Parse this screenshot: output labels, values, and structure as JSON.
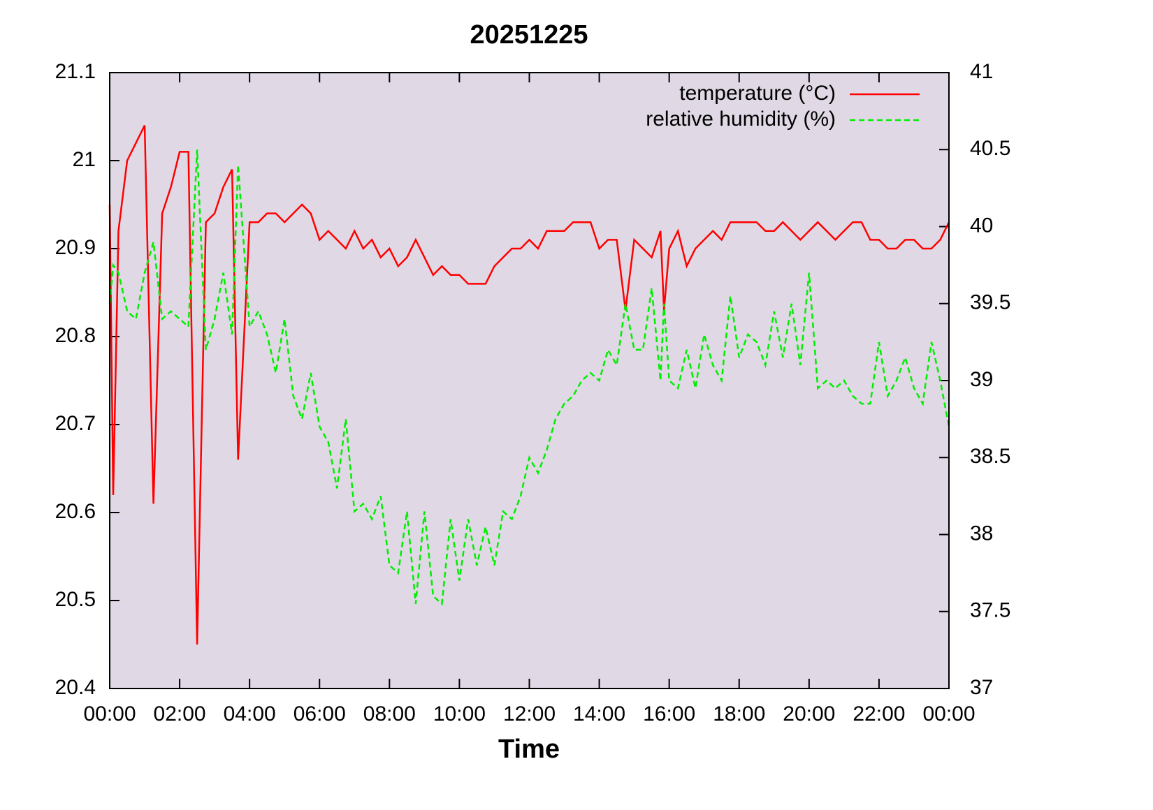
{
  "chart_data": {
    "type": "line",
    "title": "20251225",
    "xlabel": "Time",
    "x": [
      0,
      0.1,
      0.25,
      0.5,
      0.75,
      1,
      1.25,
      1.5,
      1.75,
      2,
      2.25,
      2.5,
      2.75,
      3,
      3.25,
      3.5,
      3.67,
      4,
      4.25,
      4.5,
      4.75,
      5,
      5.25,
      5.5,
      5.75,
      6,
      6.25,
      6.5,
      6.75,
      7,
      7.25,
      7.5,
      7.75,
      8,
      8.25,
      8.5,
      8.75,
      9,
      9.25,
      9.5,
      9.75,
      10,
      10.25,
      10.5,
      10.75,
      11,
      11.25,
      11.5,
      11.75,
      12,
      12.25,
      12.5,
      12.75,
      13,
      13.25,
      13.5,
      13.75,
      14,
      14.25,
      14.5,
      14.75,
      15,
      15.25,
      15.5,
      15.75,
      15.85,
      16,
      16.25,
      16.5,
      16.75,
      17,
      17.25,
      17.5,
      17.75,
      18,
      18.25,
      18.5,
      18.75,
      19,
      19.25,
      19.5,
      19.75,
      20,
      20.25,
      20.5,
      20.75,
      21,
      21.25,
      21.5,
      21.75,
      22,
      22.25,
      22.5,
      22.75,
      23,
      23.25,
      23.5,
      23.75,
      24
    ],
    "series": [
      {
        "name": "temperature (°C)",
        "color": "#ff0000",
        "dashed": false,
        "values": [
          20.95,
          20.62,
          20.92,
          21.0,
          21.02,
          21.04,
          20.61,
          20.94,
          20.97,
          21.01,
          21.01,
          20.45,
          20.93,
          20.94,
          20.97,
          20.99,
          20.66,
          20.93,
          20.93,
          20.94,
          20.94,
          20.93,
          20.94,
          20.95,
          20.94,
          20.91,
          20.92,
          20.91,
          20.9,
          20.92,
          20.9,
          20.91,
          20.89,
          20.9,
          20.88,
          20.89,
          20.91,
          20.89,
          20.87,
          20.88,
          20.87,
          20.87,
          20.86,
          20.86,
          20.86,
          20.88,
          20.89,
          20.9,
          20.9,
          20.91,
          20.9,
          20.92,
          20.92,
          20.92,
          20.93,
          20.93,
          20.93,
          20.9,
          20.91,
          20.91,
          20.83,
          20.91,
          20.9,
          20.89,
          20.92,
          20.83,
          20.9,
          20.92,
          20.88,
          20.9,
          20.91,
          20.92,
          20.91,
          20.93,
          20.93,
          20.93,
          20.93,
          20.92,
          20.92,
          20.93,
          20.92,
          20.91,
          20.92,
          20.93,
          20.92,
          20.91,
          20.92,
          20.93,
          20.93,
          20.91,
          20.91,
          20.9,
          20.9,
          20.91,
          20.91,
          20.9,
          20.9,
          20.91,
          20.93
        ]
      },
      {
        "name": "relative humidity (%)",
        "color": "#00ee00",
        "dashed": true,
        "axis": "y2",
        "values": [
          39.5,
          39.75,
          39.7,
          39.45,
          39.4,
          39.7,
          39.9,
          39.4,
          39.45,
          39.4,
          39.35,
          40.5,
          39.2,
          39.4,
          39.7,
          39.3,
          40.4,
          39.35,
          39.45,
          39.3,
          39.05,
          39.4,
          38.9,
          38.75,
          39.05,
          38.7,
          38.6,
          38.3,
          38.75,
          38.15,
          38.2,
          38.1,
          38.25,
          37.8,
          37.75,
          38.15,
          37.55,
          38.15,
          37.6,
          37.55,
          38.1,
          37.7,
          38.1,
          37.8,
          38.05,
          37.8,
          38.15,
          38.1,
          38.25,
          38.5,
          38.4,
          38.55,
          38.75,
          38.85,
          38.9,
          39.0,
          39.05,
          39.0,
          39.2,
          39.1,
          39.5,
          39.2,
          39.2,
          39.6,
          39.0,
          39.5,
          39.0,
          38.95,
          39.2,
          38.95,
          39.3,
          39.1,
          39.0,
          39.55,
          39.15,
          39.3,
          39.25,
          39.1,
          39.45,
          39.15,
          39.5,
          39.1,
          39.7,
          38.95,
          39.0,
          38.95,
          39.0,
          38.9,
          38.85,
          38.85,
          39.25,
          38.9,
          39.0,
          39.15,
          38.95,
          38.85,
          39.25,
          39.0,
          38.7
        ]
      }
    ],
    "xlim": [
      0,
      24
    ],
    "xticks": [
      {
        "value": 0,
        "label": "00:00"
      },
      {
        "value": 2,
        "label": "02:00"
      },
      {
        "value": 4,
        "label": "04:00"
      },
      {
        "value": 6,
        "label": "06:00"
      },
      {
        "value": 8,
        "label": "08:00"
      },
      {
        "value": 10,
        "label": "10:00"
      },
      {
        "value": 12,
        "label": "12:00"
      },
      {
        "value": 14,
        "label": "14:00"
      },
      {
        "value": 16,
        "label": "16:00"
      },
      {
        "value": 18,
        "label": "18:00"
      },
      {
        "value": 20,
        "label": "20:00"
      },
      {
        "value": 22,
        "label": "22:00"
      },
      {
        "value": 24,
        "label": "00:00"
      }
    ],
    "ylim": [
      20.4,
      21.1
    ],
    "yticks": [
      20.4,
      20.5,
      20.6,
      20.7,
      20.8,
      20.9,
      21,
      21.1
    ],
    "y2lim": [
      37,
      41
    ],
    "y2ticks": [
      37,
      37.5,
      38,
      38.5,
      39,
      39.5,
      40,
      40.5,
      41
    ],
    "legend": "top-right",
    "background": "#e0d9e5"
  }
}
